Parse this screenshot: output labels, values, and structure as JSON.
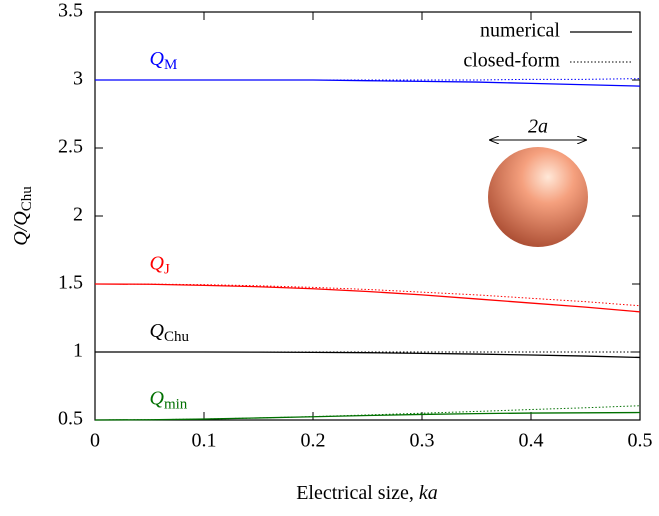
{
  "chart_data": {
    "type": "line",
    "xlabel": "Electrical size, ",
    "xlabel_italic": "ka",
    "ylabel": "Q/Q",
    "ylabel_sub": "Chu",
    "x": [
      0,
      0.05,
      0.1,
      0.15,
      0.2,
      0.25,
      0.3,
      0.35,
      0.4,
      0.45,
      0.5
    ],
    "xlim": [
      0,
      0.5
    ],
    "xticks": [
      0,
      0.1,
      0.2,
      0.3,
      0.4,
      0.5
    ],
    "ylim": [
      0.5,
      3.5
    ],
    "yticks": [
      0.5,
      1,
      1.5,
      2,
      2.5,
      3,
      3.5
    ],
    "styles": [
      {
        "name": "numerical",
        "dash": "solid"
      },
      {
        "name": "closed-form",
        "dash": "dotted"
      }
    ],
    "curves": [
      {
        "label": "Q",
        "sub": "M",
        "color": "#0000ff",
        "numerical": [
          3,
          3,
          3,
          3,
          3,
          2.995,
          2.99,
          2.985,
          2.975,
          2.965,
          2.955
        ],
        "closed_form": [
          3,
          3,
          3,
          3,
          3,
          3,
          3,
          3,
          3.005,
          3.005,
          3.01
        ]
      },
      {
        "label": "Q",
        "sub": "J",
        "color": "#ff0000",
        "numerical": [
          1.5,
          1.498,
          1.49,
          1.48,
          1.465,
          1.445,
          1.42,
          1.39,
          1.36,
          1.33,
          1.295
        ],
        "closed_form": [
          1.5,
          1.499,
          1.495,
          1.487,
          1.475,
          1.46,
          1.44,
          1.42,
          1.395,
          1.37,
          1.34
        ]
      },
      {
        "label": "Q",
        "sub": "Chu",
        "color": "#000000",
        "numerical": [
          1,
          1,
          1,
          0.999,
          0.997,
          0.995,
          0.99,
          0.985,
          0.978,
          0.97,
          0.96
        ],
        "closed_form": [
          1,
          1,
          1,
          1,
          1,
          1,
          1,
          1,
          1,
          1,
          1
        ]
      },
      {
        "label": "Q",
        "sub": "min",
        "color": "#007000",
        "numerical": [
          0.5,
          0.502,
          0.507,
          0.515,
          0.524,
          0.533,
          0.541,
          0.547,
          0.551,
          0.553,
          0.555
        ],
        "closed_form": [
          0.5,
          0.502,
          0.507,
          0.515,
          0.525,
          0.537,
          0.55,
          0.563,
          0.577,
          0.59,
          0.605
        ]
      }
    ],
    "inset_label": "2a"
  }
}
